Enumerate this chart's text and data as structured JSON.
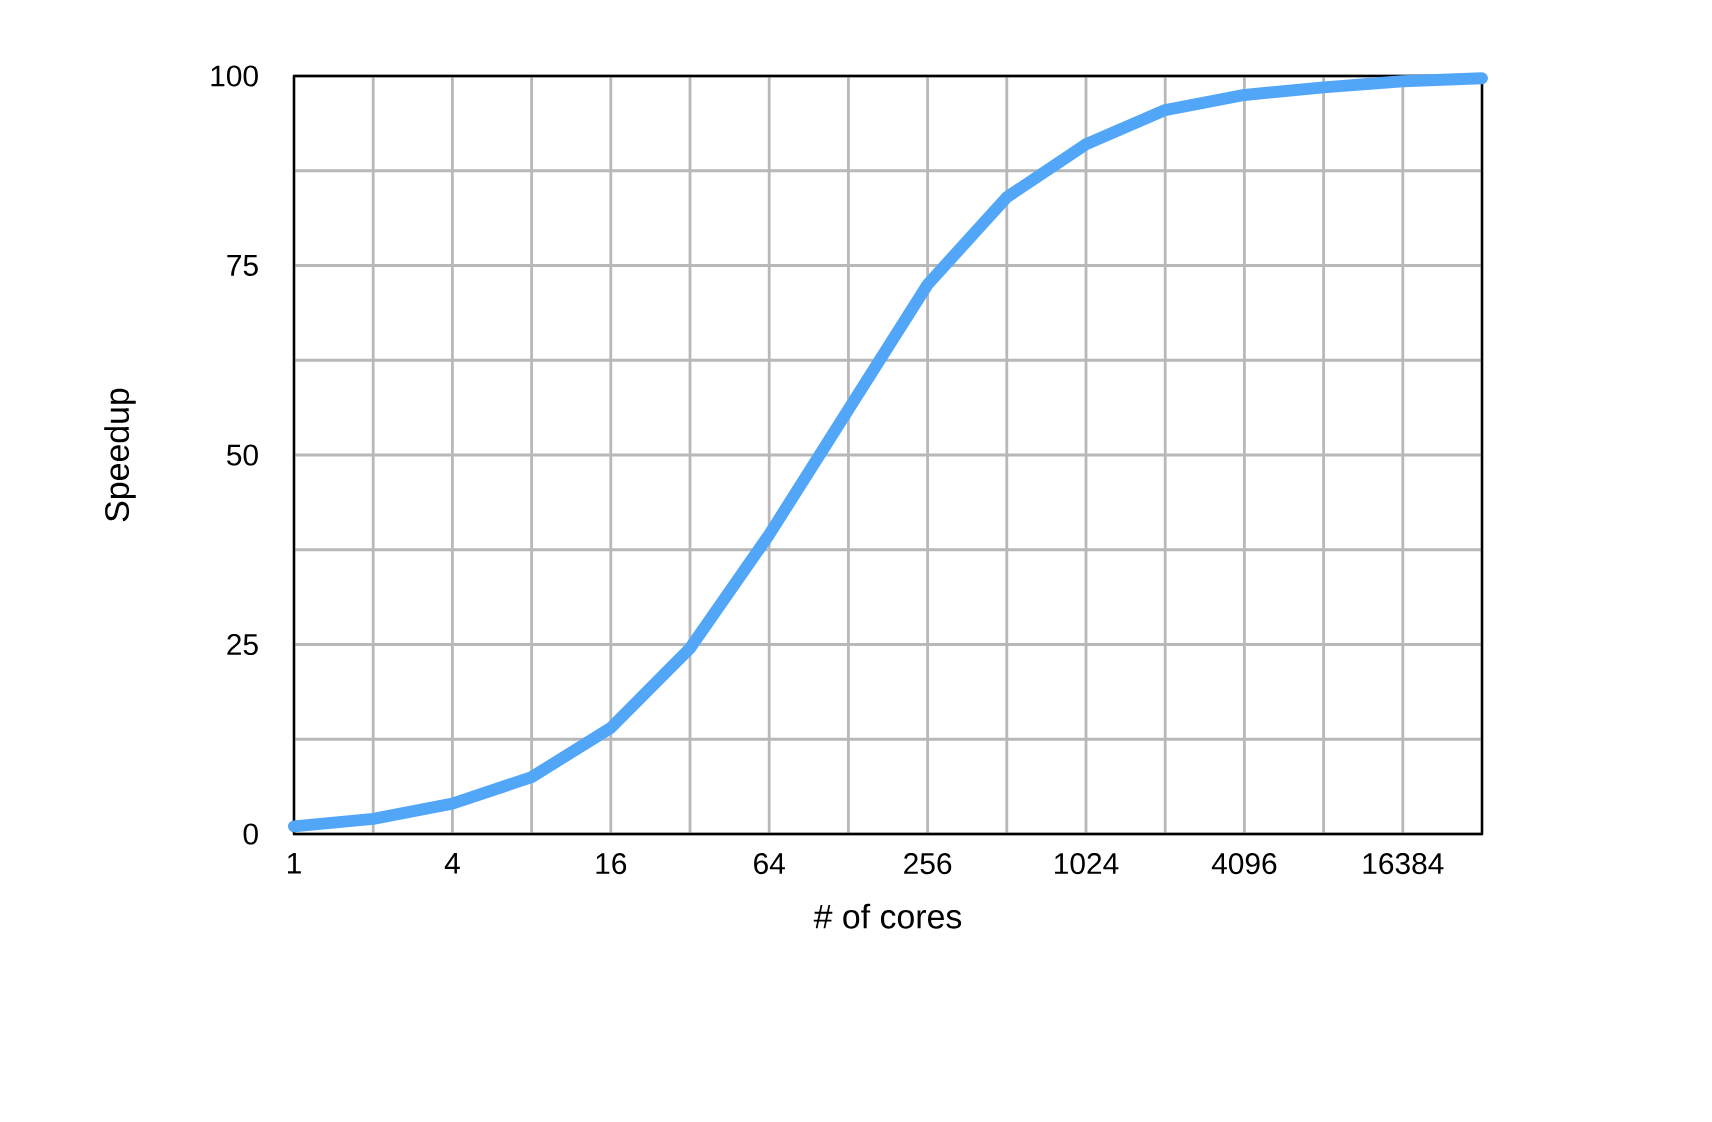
{
  "chart_data": {
    "type": "line",
    "xlabel": "# of cores",
    "ylabel": "Speedup",
    "x": [
      1,
      2,
      4,
      8,
      16,
      32,
      64,
      128,
      256,
      512,
      1024,
      2048,
      4096,
      8192,
      16384,
      32768
    ],
    "values": [
      1,
      2,
      4,
      7.5,
      14,
      24.5,
      39.5,
      56,
      72.5,
      84,
      91,
      95.5,
      97.5,
      98.5,
      99.3,
      99.7
    ],
    "color": "#52a6f8",
    "xlim": [
      1,
      32768
    ],
    "ylim": [
      0,
      100
    ],
    "xticks": [
      1,
      {
        "value": 2,
        "label": null
      },
      4,
      {
        "value": 8,
        "label": null
      },
      16,
      {
        "value": 32,
        "label": null
      },
      64,
      {
        "value": 128,
        "label": null
      },
      256,
      {
        "value": 512,
        "label": null
      },
      1024,
      {
        "value": 2048,
        "label": null
      },
      4096,
      {
        "value": 8192,
        "label": null
      },
      16384,
      {
        "value": 32768,
        "label": null
      }
    ],
    "yticks": [
      0,
      {
        "value": 12.5,
        "label": null
      },
      25,
      {
        "value": 37.5,
        "label": null
      },
      50,
      {
        "value": 62.5,
        "label": null
      },
      75,
      {
        "value": 87.5,
        "label": null
      },
      100
    ],
    "log": "x",
    "grid": true
  }
}
